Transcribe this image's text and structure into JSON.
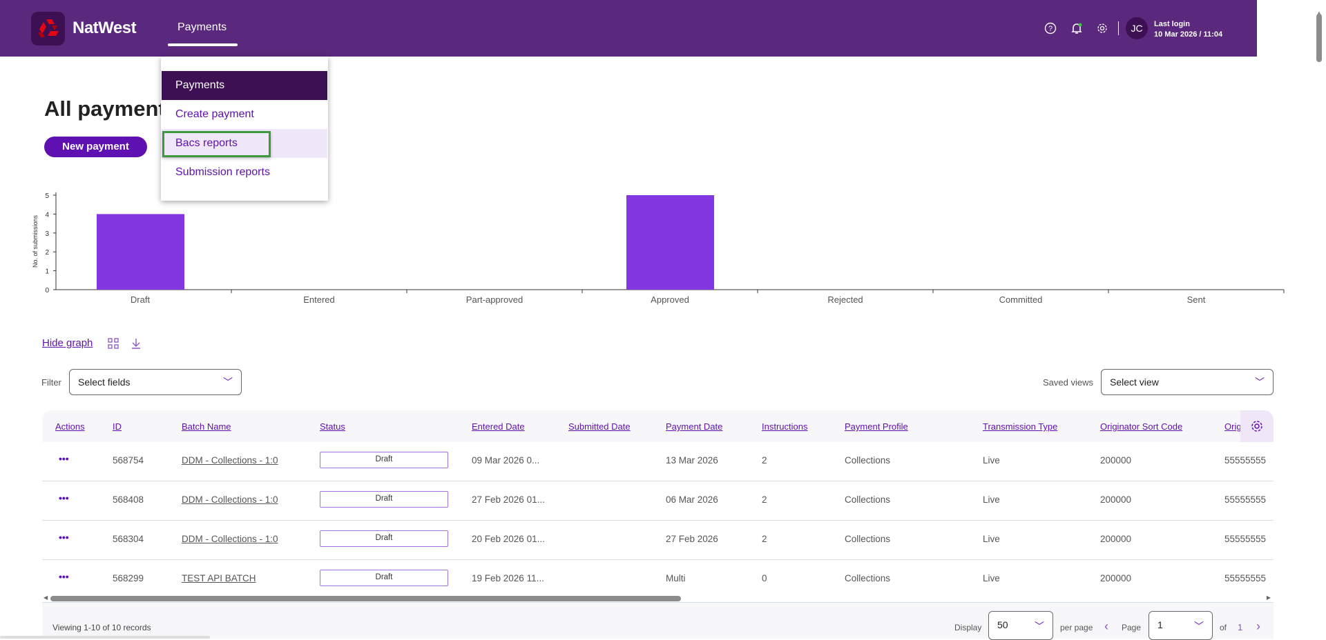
{
  "header": {
    "brand": "NatWest",
    "nav_item": "Payments",
    "last_login_label": "Last login",
    "last_login_value": "10 Mar 2026 / 11:04",
    "avatar_initials": "JC",
    "icons": [
      "help-icon",
      "bell-icon",
      "gear-icon"
    ],
    "colors": {
      "header_bg": "#5a287d",
      "accent": "#5e10b1",
      "notification": "#3cc43c"
    }
  },
  "menu": {
    "items": [
      {
        "label": "Payments",
        "active": true
      },
      {
        "label": "Create payment"
      },
      {
        "label": "Bacs reports",
        "highlighted": true
      },
      {
        "label": "Submission reports"
      }
    ]
  },
  "page": {
    "title": "All payments",
    "new_payment": "New payment"
  },
  "chart_data": {
    "type": "bar",
    "title": "",
    "xlabel": "",
    "ylabel": "No. of submissions",
    "categories": [
      "Draft",
      "Entered",
      "Part-approved",
      "Approved",
      "Rejected",
      "Committed",
      "Sent"
    ],
    "values": [
      4,
      0,
      0,
      5,
      0,
      0,
      0
    ],
    "ylim": [
      0,
      5
    ],
    "yticks": [
      0,
      1,
      2,
      3,
      4,
      5
    ],
    "color": "#8237e0"
  },
  "toolbar": {
    "hide_graph": "Hide graph"
  },
  "filter": {
    "label": "Filter",
    "placeholder": "Select fields",
    "saved_views_label": "Saved views",
    "saved_views_placeholder": "Select view"
  },
  "table": {
    "columns": [
      "Actions",
      "ID",
      "Batch Name",
      "Status",
      "Entered Date",
      "Submitted Date",
      "Payment Date",
      "Instructions",
      "Payment Profile",
      "Transmission Type",
      "Originator Sort Code",
      "Orig"
    ],
    "rows": [
      {
        "id": "568754",
        "batch": "DDM - Collections - 1:0",
        "status": "Draft",
        "entered": "09 Mar 2026 0...",
        "submitted": "",
        "payment_date": "13 Mar 2026",
        "instructions": "2",
        "profile": "Collections",
        "transmission": "Live",
        "sort_code": "200000",
        "orig": "55555555"
      },
      {
        "id": "568408",
        "batch": "DDM - Collections - 1:0",
        "status": "Draft",
        "entered": "27 Feb 2026 01...",
        "submitted": "",
        "payment_date": "06 Mar 2026",
        "instructions": "2",
        "profile": "Collections",
        "transmission": "Live",
        "sort_code": "200000",
        "orig": "55555555"
      },
      {
        "id": "568304",
        "batch": "DDM - Collections - 1:0",
        "status": "Draft",
        "entered": "20 Feb 2026 01...",
        "submitted": "",
        "payment_date": "27 Feb 2026",
        "instructions": "2",
        "profile": "Collections",
        "transmission": "Live",
        "sort_code": "200000",
        "orig": "55555555"
      },
      {
        "id": "568299",
        "batch": "TEST API BATCH",
        "status": "Draft",
        "entered": "19 Feb 2026 11...",
        "submitted": "",
        "payment_date": "Multi",
        "instructions": "0",
        "profile": "Collections",
        "transmission": "Live",
        "sort_code": "200000",
        "orig": "55555555"
      }
    ]
  },
  "footer": {
    "viewing": "Viewing 1-10 of 10 records",
    "display_label": "Display",
    "per_page_value": "50",
    "per_page_label": "per page",
    "page_label": "Page",
    "page_value": "1",
    "of_label": "of",
    "total_pages": "1"
  }
}
